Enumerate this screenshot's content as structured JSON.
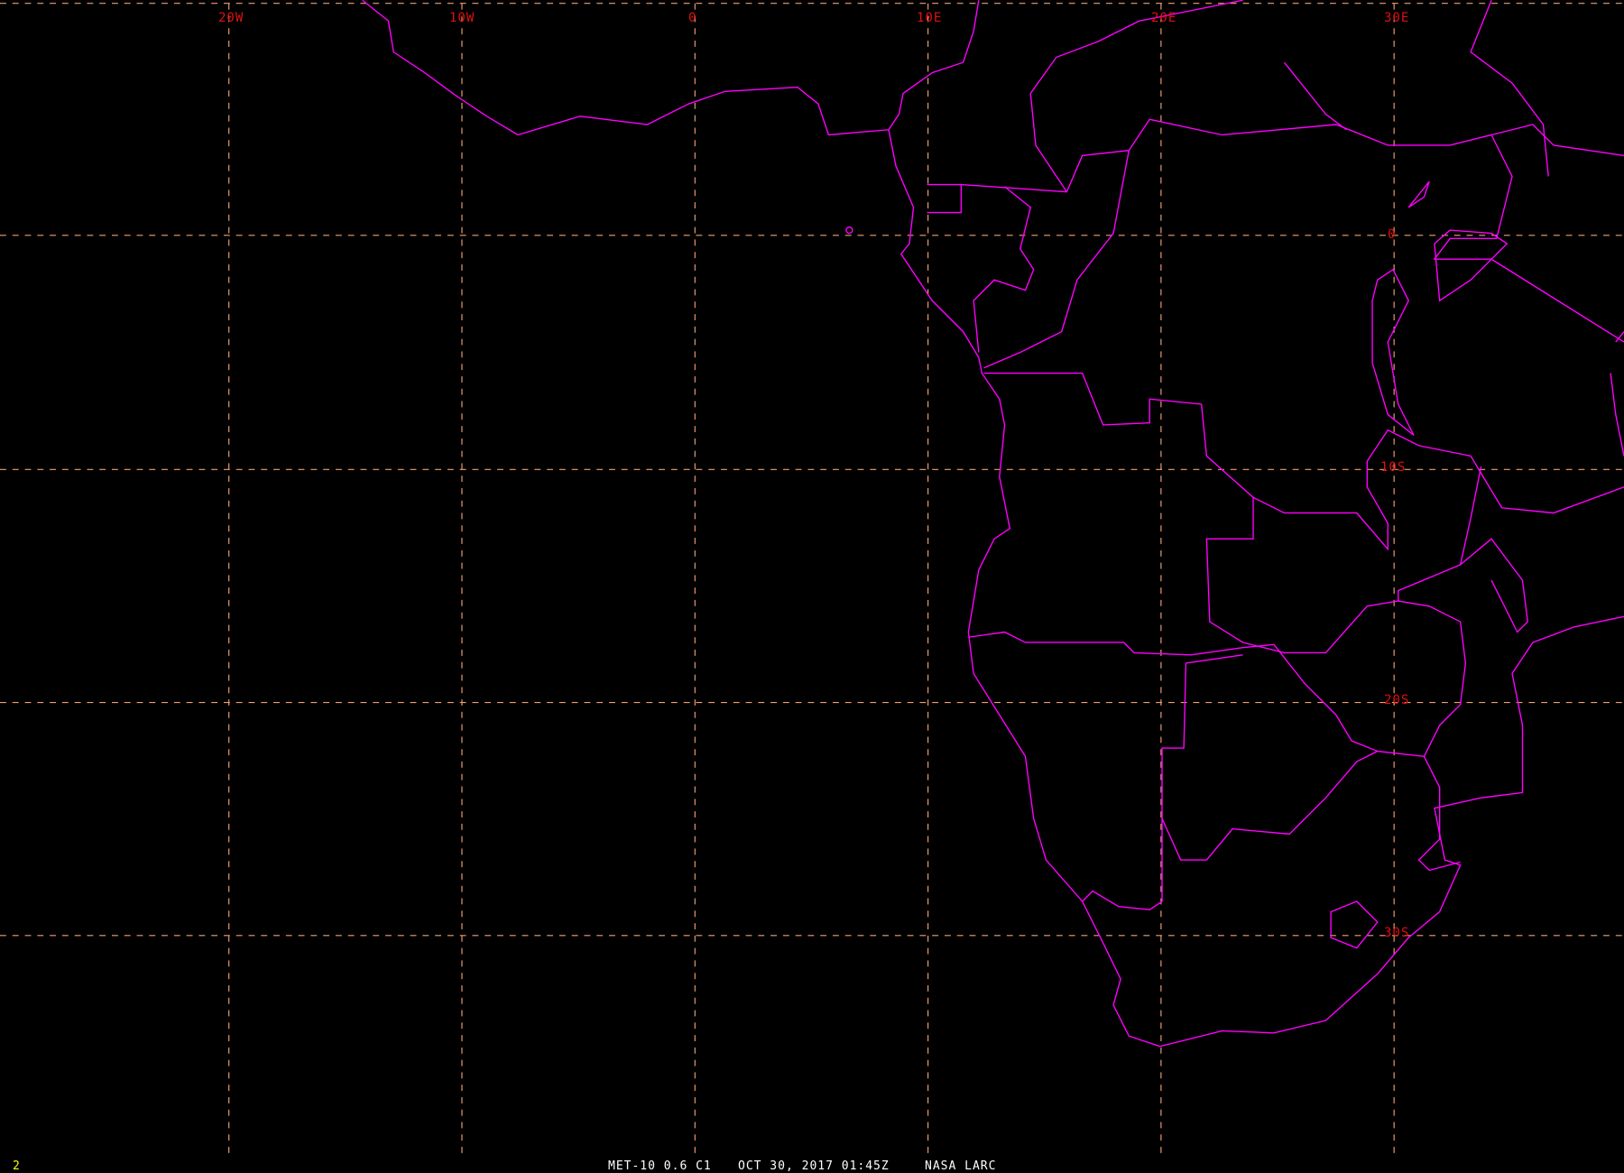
{
  "map": {
    "longitude_labels": [
      "20W",
      "10W",
      "0",
      "10E",
      "20E",
      "30E"
    ],
    "latitude_labels": [
      "0",
      "10S",
      "20S",
      "30S"
    ],
    "colors": {
      "grid": "#f0a070",
      "coastline": "#ff00ff",
      "grid_labels": "#e01010",
      "footer": "#ffffff",
      "frame_number": "#ffff00"
    }
  },
  "footer": {
    "frame_number": "2",
    "satellite_channel": "MET-10 0.6 C1",
    "datetime": "OCT 30, 2017 01:45Z",
    "source": "NASA LARC"
  }
}
